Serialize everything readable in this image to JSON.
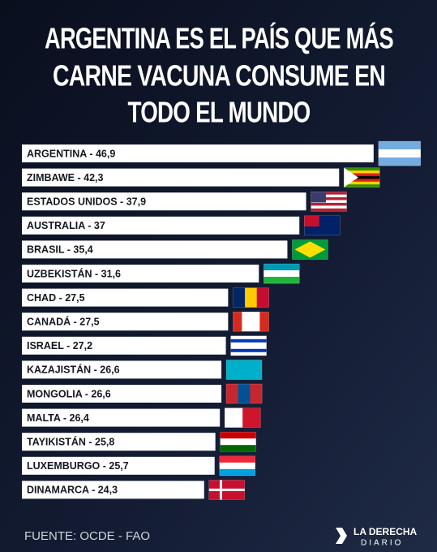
{
  "chart_data": {
    "type": "bar",
    "orientation": "horizontal",
    "title": [
      "ARGENTINA ES EL PAÍS QUE MÁS",
      "CARNE VACUNA CONSUME EN",
      "TODO EL MUNDO"
    ],
    "categories": [
      "ARGENTINA - 46,9",
      "ZIMBAWE - 42,3",
      "ESTADOS UNIDOS - 37,9",
      "AUSTRALIA - 37",
      "BRASIL - 35,4",
      "UZBEKISTÁN - 31,6",
      "CHAD - 27,5",
      "CANADÁ - 27,5",
      "ISRAEL - 27,2",
      "KAZAJISTÁN - 26,6",
      "MONGOLIA - 26,6",
      "MALTA - 26,4",
      "TAYIKISTÁN - 25,8",
      "LUXEMBURGO - 25,7",
      "DINAMARCA - 24,3"
    ],
    "values": [
      46.9,
      42.3,
      37.9,
      37,
      35.4,
      31.6,
      27.5,
      27.5,
      27.2,
      26.6,
      26.6,
      26.4,
      25.8,
      25.7,
      24.3
    ],
    "color": "#ffffff",
    "source": "FUENTE: OCDE - FAO",
    "logo": [
      "LA DERECHA",
      "DIARIO"
    ]
  }
}
